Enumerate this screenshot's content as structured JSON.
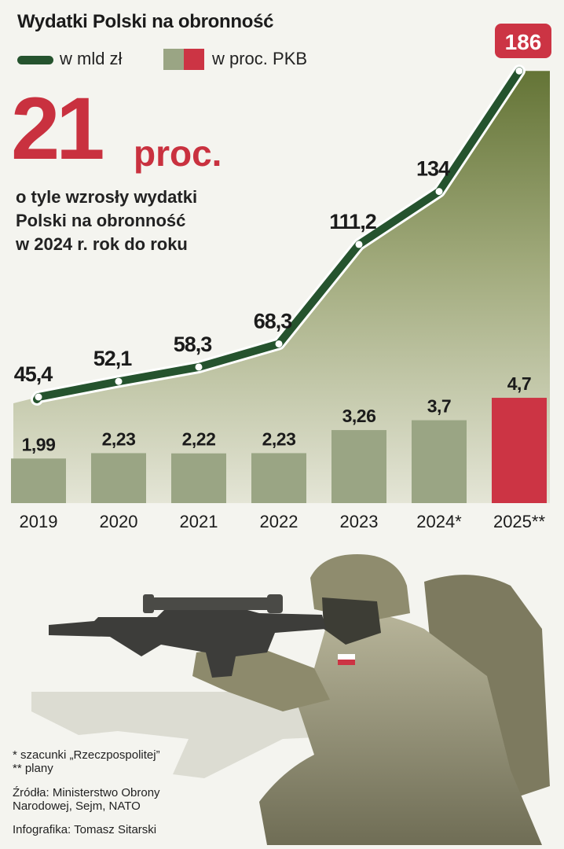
{
  "header": {
    "title": "Wydatki Polski na obronność",
    "legend_line": "w mld zł",
    "legend_bar": "w proc. PKB"
  },
  "highlight": {
    "number": "21",
    "unit": "proc.",
    "lines": [
      "o tyle wzrosły wydatki",
      "Polski na obronność",
      "w 2024 r. rok do roku"
    ]
  },
  "colors": {
    "line": "#25532e",
    "bar": "#9aa584",
    "bar_highlight": "#cc3444",
    "big_number": "#c9313f",
    "area_top": "#647436"
  },
  "chart_data": {
    "type": "bar",
    "categories": [
      "2019",
      "2020",
      "2021",
      "2022",
      "2023",
      "2024*",
      "2025**"
    ],
    "series": [
      {
        "name": "w mld zł",
        "type": "line",
        "values": [
          45.4,
          52.1,
          58.3,
          68.3,
          111.2,
          134,
          186
        ],
        "labels": [
          "45,4",
          "52,1",
          "58,3",
          "68,3",
          "111,2",
          "134",
          "186"
        ]
      },
      {
        "name": "w proc. PKB",
        "type": "bar",
        "values": [
          1.99,
          2.23,
          2.22,
          2.23,
          3.26,
          3.7,
          4.7
        ],
        "labels": [
          "1,99",
          "2,23",
          "2,22",
          "2,23",
          "3,26",
          "3,7",
          "4,7"
        ]
      }
    ],
    "highlighted_category": "2025**"
  },
  "footnotes": [
    "* szacunki „Rzeczpospolitej”",
    "** plany"
  ],
  "sources": [
    "Źródła: Ministerstwo Obrony",
    "Narodowej, Sejm, NATO"
  ],
  "credit": "Infografika: Tomasz Sitarski"
}
